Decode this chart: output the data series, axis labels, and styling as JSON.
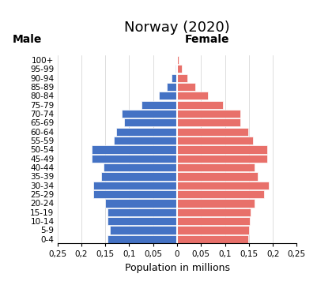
{
  "title": "Norway (2020)",
  "xlabel": "Population in millions",
  "age_groups": [
    "0-4",
    "5-9",
    "10-14",
    "15-19",
    "20-24",
    "25-29",
    "30-34",
    "35-39",
    "40-44",
    "45-49",
    "50-54",
    "55-59",
    "60-64",
    "65-69",
    "70-74",
    "75-79",
    "80-84",
    "85-89",
    "90-94",
    "95-99",
    "100+"
  ],
  "male": [
    0.145,
    0.14,
    0.145,
    0.145,
    0.15,
    0.175,
    0.175,
    0.158,
    0.153,
    0.178,
    0.178,
    0.132,
    0.127,
    0.11,
    0.115,
    0.075,
    0.038,
    0.022,
    0.012,
    0.004,
    0.001
  ],
  "female": [
    0.148,
    0.15,
    0.152,
    0.153,
    0.162,
    0.182,
    0.192,
    0.168,
    0.162,
    0.188,
    0.188,
    0.158,
    0.148,
    0.132,
    0.132,
    0.095,
    0.065,
    0.038,
    0.022,
    0.01,
    0.004
  ],
  "male_color": "#4472C4",
  "female_color": "#E8706A",
  "bar_edge_color": "white",
  "xlim": 0.25,
  "xtick_labels": [
    "0,25",
    "0,2",
    "0,15",
    "0,1",
    "0,05",
    "0",
    "0,05",
    "0,1",
    "0,15",
    "0,2",
    "0,25"
  ],
  "male_label": "Male",
  "female_label": "Female",
  "title_fontsize": 13,
  "axis_label_fontsize": 9,
  "tick_fontsize": 7.5,
  "background_color": "#ffffff",
  "bar_height": 0.9
}
